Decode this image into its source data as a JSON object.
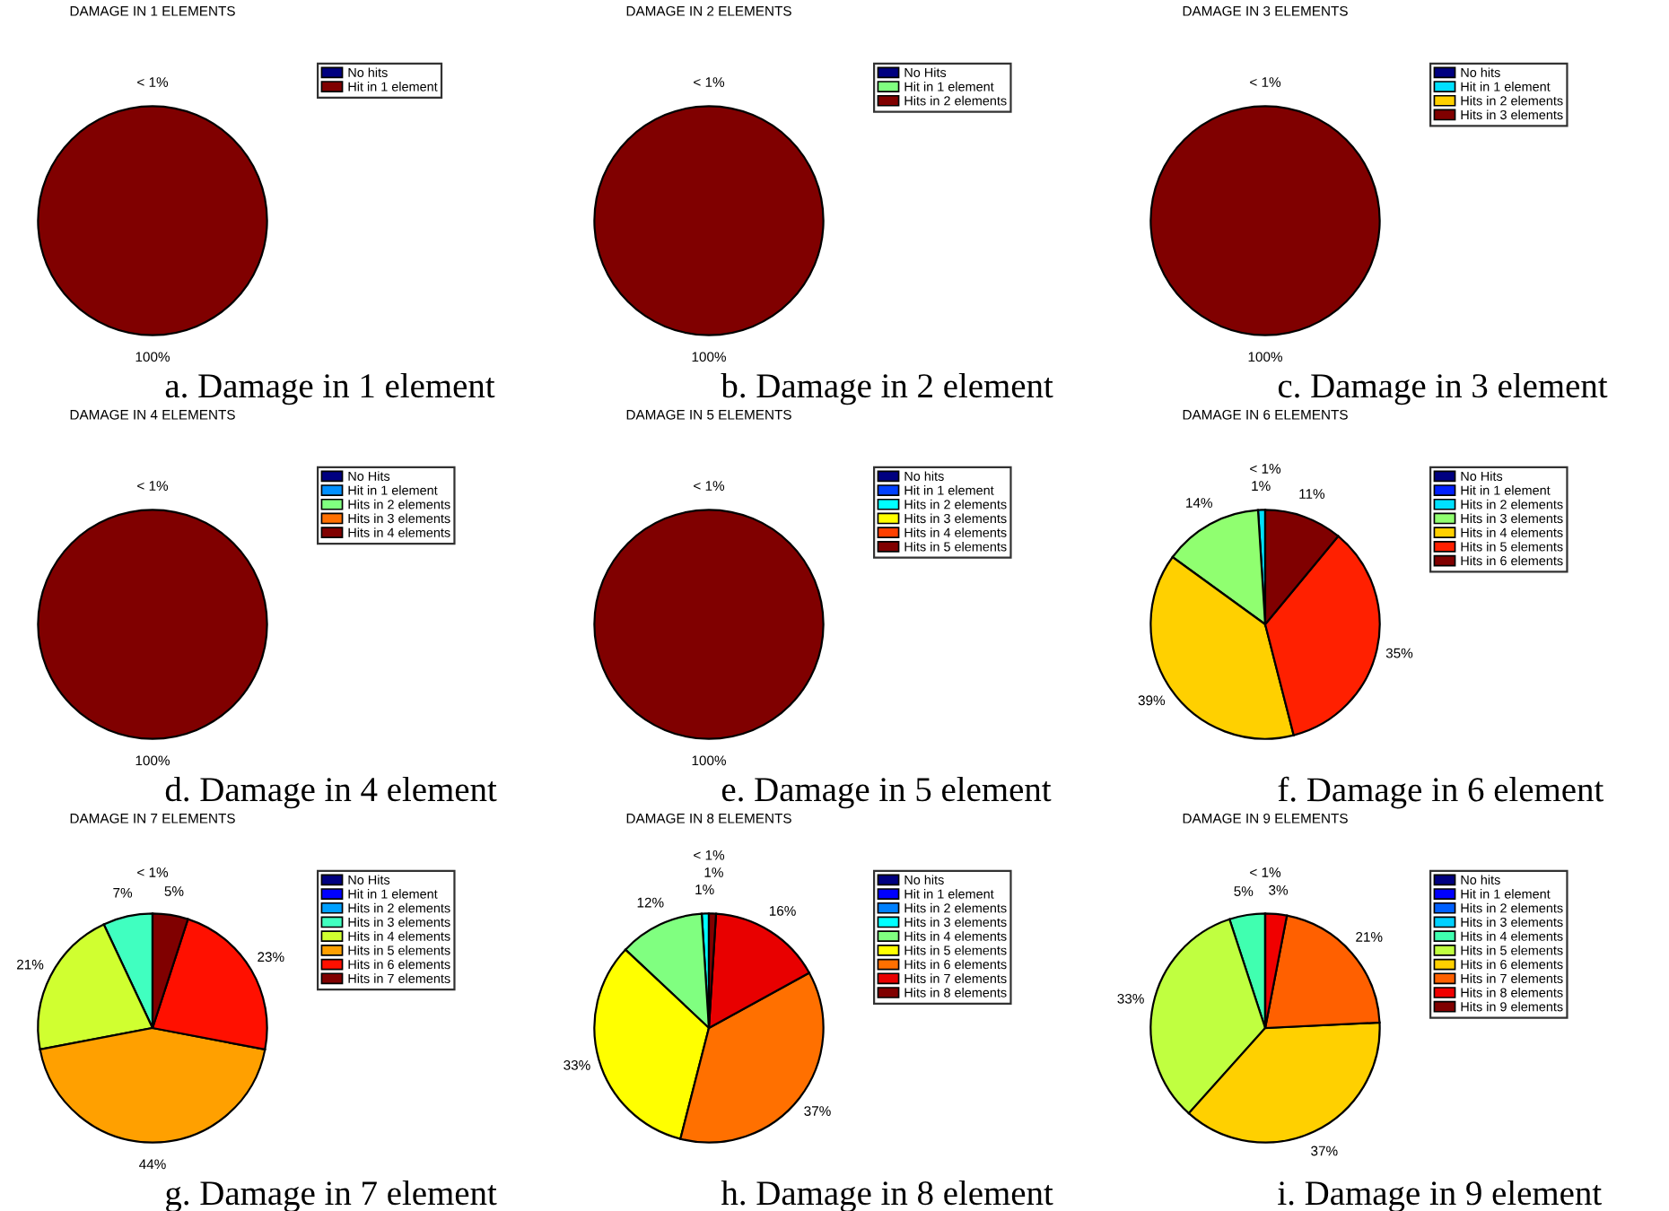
{
  "chart_data": [
    {
      "type": "pie",
      "title": "DAMAGE IN 1 ELEMENTS",
      "legend": "top right",
      "annotations": [
        "a. Damage in 1 element"
      ],
      "categories": [
        "No hits",
        "Hit in 1 element"
      ],
      "values": [
        0,
        100
      ],
      "colors": [
        "#000080",
        "#800000"
      ],
      "value_labels": [
        "< 1%",
        "100%"
      ]
    },
    {
      "type": "pie",
      "title": "DAMAGE IN 2 ELEMENTS",
      "legend": "top right",
      "annotations": [
        "b. Damage in 2 element"
      ],
      "categories": [
        "No Hits",
        "Hit in 1 element",
        "Hits in 2 elements"
      ],
      "values": [
        0,
        0,
        100
      ],
      "colors": [
        "#000080",
        "#80ff80",
        "#800000"
      ],
      "value_labels": [
        "< 1%",
        null,
        "100%"
      ]
    },
    {
      "type": "pie",
      "title": "DAMAGE IN 3 ELEMENTS",
      "legend": "top right",
      "annotations": [
        "c. Damage in 3 element"
      ],
      "categories": [
        "No hits",
        "Hit in 1 element",
        "Hits in 2 elements",
        "Hits in 3 elements"
      ],
      "values": [
        0,
        0,
        0,
        100
      ],
      "colors": [
        "#000080",
        "#00e0ff",
        "#ffd000",
        "#800000"
      ],
      "value_labels": [
        "< 1%",
        null,
        null,
        "100%"
      ]
    },
    {
      "type": "pie",
      "title": "DAMAGE IN 4 ELEMENTS",
      "legend": "top right",
      "annotations": [
        "d. Damage in 4 element"
      ],
      "categories": [
        "No Hits",
        "Hit in 1 element",
        "Hits in 2 elements",
        "Hits in 3 elements",
        "Hits in 4 elements"
      ],
      "values": [
        0,
        0,
        0,
        0,
        100
      ],
      "colors": [
        "#000080",
        "#0090ff",
        "#80ff80",
        "#ff7000",
        "#800000"
      ],
      "value_labels": [
        "< 1%",
        null,
        null,
        null,
        "100%"
      ]
    },
    {
      "type": "pie",
      "title": "DAMAGE IN 5 ELEMENTS",
      "legend": "top right",
      "annotations": [
        "e. Damage in 5 element"
      ],
      "categories": [
        "No hits",
        "Hit in 1 element",
        "Hits in 2 elements",
        "Hits in 3 elements",
        "Hits in 4 elements",
        "Hits in 5 elements"
      ],
      "values": [
        0,
        0,
        0,
        0,
        0,
        100
      ],
      "colors": [
        "#000080",
        "#0040ff",
        "#00ffff",
        "#ffff00",
        "#ff4000",
        "#800000"
      ],
      "value_labels": [
        "< 1%",
        null,
        null,
        null,
        null,
        "100%"
      ]
    },
    {
      "type": "pie",
      "title": "DAMAGE IN 6 ELEMENTS",
      "legend": "top right",
      "annotations": [
        "f. Damage in 6 element"
      ],
      "categories": [
        "No Hits",
        "Hit in 1 element",
        "Hits in 2 elements",
        "Hits in 3 elements",
        "Hits in 4 elements",
        "Hits in 5 elements",
        "Hits in 6 elements"
      ],
      "values": [
        0,
        0,
        1,
        14,
        39,
        35,
        11
      ],
      "colors": [
        "#000080",
        "#0020ff",
        "#00e0ff",
        "#90ff70",
        "#ffd000",
        "#ff2000",
        "#800000"
      ],
      "value_labels": [
        "< 1%",
        null,
        "1%",
        "14%",
        "39%",
        "35%",
        "11%"
      ]
    },
    {
      "type": "pie",
      "title": "DAMAGE IN 7 ELEMENTS",
      "legend": "top right",
      "annotations": [
        "g. Damage in 7 element"
      ],
      "categories": [
        "No Hits",
        "Hit in 1 element",
        "Hits in 2 elements",
        "Hits in 3 elements",
        "Hits in 4 elements",
        "Hits in 5 elements",
        "Hits in 6 elements",
        "Hits in 7 elements"
      ],
      "values": [
        0,
        0,
        0,
        7,
        21,
        44,
        23,
        5
      ],
      "colors": [
        "#000080",
        "#0000ff",
        "#00a0ff",
        "#40ffc0",
        "#d0ff30",
        "#ffa000",
        "#ff1000",
        "#800000"
      ],
      "value_labels": [
        "< 1%",
        null,
        null,
        "7%",
        "21%",
        "44%",
        "23%",
        "5%"
      ]
    },
    {
      "type": "pie",
      "title": "DAMAGE IN 8 ELEMENTS",
      "legend": "top right",
      "annotations": [
        "h. Damage in 8 element"
      ],
      "categories": [
        "No hits",
        "Hit in 1 element",
        "Hits in 2 elements",
        "Hits in 3 elements",
        "Hits in 4 elements",
        "Hits in 5 elements",
        "Hits in 6 elements",
        "Hits in 7 elements",
        "Hits in 8 elements"
      ],
      "values": [
        0,
        0,
        0,
        1,
        12,
        33,
        37,
        16,
        1
      ],
      "colors": [
        "#000080",
        "#0000ff",
        "#0080ff",
        "#00ffff",
        "#80ff80",
        "#ffff00",
        "#ff7000",
        "#e80000",
        "#800000"
      ],
      "value_labels": [
        "< 1%",
        null,
        null,
        "1%",
        "12%",
        "33%",
        "37%",
        "16%",
        "1%"
      ]
    },
    {
      "type": "pie",
      "title": "DAMAGE IN 9 ELEMENTS",
      "legend": "top right",
      "annotations": [
        "i. Damage in 9 element"
      ],
      "categories": [
        "No hits",
        "Hit in 1 element",
        "Hits in 2 elements",
        "Hits in 3 elements",
        "Hits in 4 elements",
        "Hits in 5 elements",
        "Hits in 6 elements",
        "Hits in 7 elements",
        "Hits in 8 elements",
        "Hits in 9 elements"
      ],
      "values": [
        0,
        0,
        0,
        0,
        5,
        33,
        37,
        21,
        3,
        0
      ],
      "colors": [
        "#000080",
        "#0000ff",
        "#0060ff",
        "#00d0ff",
        "#40ffb0",
        "#c0ff40",
        "#ffd000",
        "#ff6000",
        "#f00000",
        "#800000"
      ],
      "value_labels": [
        "< 1%",
        null,
        null,
        null,
        "5%",
        "33%",
        "37%",
        "21%",
        "3%",
        null
      ]
    }
  ]
}
